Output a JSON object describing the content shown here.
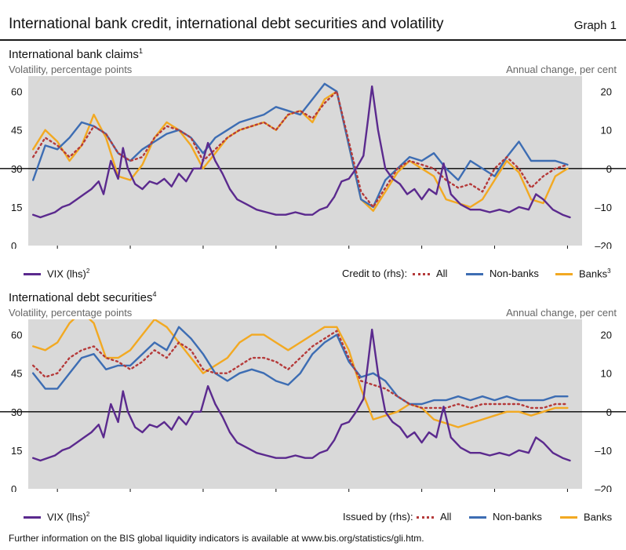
{
  "header": {
    "title": "International bank credit, international debt securities and volatility",
    "graph": "Graph 1"
  },
  "footnote": "Further information on the BIS global liquidity indicators is available at www.bis.org/statistics/gli.htm.",
  "colors": {
    "vix": "#5b2a8e",
    "all": "#b53a3a",
    "nonbanks": "#3d6db3",
    "banks": "#f2a922",
    "plot_bg": "#d9d9d9"
  },
  "chart_data": [
    {
      "type": "line",
      "title": "International bank claims",
      "title_note": "1",
      "ylabel_left": "Volatility, percentage points",
      "ylabel_right": "Annual change, per cent",
      "ylim_left": [
        0,
        66
      ],
      "ylim_right": [
        -20,
        24
      ],
      "left_ticks": [
        "0",
        "15",
        "30",
        "45",
        "60"
      ],
      "right_ticks": [
        "–20",
        "–10",
        "0",
        "10",
        "20"
      ],
      "x_ticks": [
        "1996",
        "1999",
        "2002",
        "2005",
        "2008",
        "2011",
        "2014",
        "2017"
      ],
      "xlim": [
        1994.8,
        2017.6
      ],
      "zero_line": true,
      "legend": {
        "vix_label": "VIX (lhs)",
        "vix_note": "2",
        "group_label": "Credit to (rhs):",
        "all_label": "All",
        "nonbanks_label": "Non-banks",
        "banks_label": "Banks",
        "banks_note": "3"
      },
      "series": [
        {
          "name": "VIX (lhs)",
          "axis": "left",
          "style": "vix",
          "x": [
            1995.0,
            1995.3,
            1995.6,
            1995.9,
            1996.2,
            1996.5,
            1996.8,
            1997.1,
            1997.4,
            1997.7,
            1997.9,
            1998.2,
            1998.5,
            1998.7,
            1998.9,
            1999.2,
            1999.5,
            1999.8,
            2000.1,
            2000.4,
            2000.7,
            2001.0,
            2001.3,
            2001.6,
            2001.9,
            2002.2,
            2002.5,
            2002.8,
            2003.1,
            2003.4,
            2003.8,
            2004.2,
            2004.6,
            2005.0,
            2005.4,
            2005.8,
            2006.2,
            2006.5,
            2006.8,
            2007.1,
            2007.4,
            2007.7,
            2008.0,
            2008.3,
            2008.6,
            2008.8,
            2008.95,
            2009.2,
            2009.5,
            2009.8,
            2010.1,
            2010.4,
            2010.7,
            2011.0,
            2011.3,
            2011.6,
            2011.9,
            2012.2,
            2012.6,
            2013.0,
            2013.4,
            2013.8,
            2014.2,
            2014.6,
            2015.0,
            2015.4,
            2015.7,
            2016.0,
            2016.4,
            2016.8,
            2017.1
          ],
          "y": [
            12,
            11,
            12,
            13,
            15,
            16,
            18,
            20,
            22,
            25,
            20,
            33,
            26,
            38,
            30,
            24,
            22,
            25,
            24,
            26,
            23,
            28,
            25,
            30,
            30,
            40,
            33,
            28,
            22,
            18,
            16,
            14,
            13,
            12,
            12,
            13,
            12,
            12,
            14,
            15,
            19,
            25,
            26,
            30,
            35,
            50,
            62,
            45,
            30,
            26,
            24,
            20,
            22,
            18,
            22,
            20,
            32,
            20,
            16,
            14,
            14,
            13,
            14,
            13,
            15,
            14,
            20,
            18,
            14,
            12,
            11
          ]
        },
        {
          "name": "All",
          "axis": "right",
          "style": "all",
          "x": [
            1995.0,
            1995.5,
            1996.0,
            1996.5,
            1997.0,
            1997.5,
            1998.0,
            1998.5,
            1999.0,
            1999.5,
            2000.0,
            2000.5,
            2001.0,
            2001.5,
            2002.0,
            2002.5,
            2003.0,
            2003.5,
            2004.0,
            2004.5,
            2005.0,
            2005.5,
            2006.0,
            2006.5,
            2007.0,
            2007.5,
            2008.0,
            2008.5,
            2009.0,
            2009.5,
            2010.0,
            2010.5,
            2011.0,
            2011.5,
            2012.0,
            2012.5,
            2013.0,
            2013.5,
            2014.0,
            2014.5,
            2015.0,
            2015.5,
            2016.0,
            2016.5,
            2017.0
          ],
          "y": [
            3,
            8,
            6,
            3,
            6,
            11,
            9,
            4,
            2,
            3,
            8,
            11,
            10,
            8,
            2,
            5,
            8,
            10,
            11,
            12,
            10,
            14,
            15,
            13,
            17,
            20,
            7,
            -6,
            -10,
            -5,
            0,
            2,
            1,
            0,
            -3,
            -5,
            -4,
            -6,
            0,
            3,
            0,
            -5,
            -2,
            0,
            1
          ]
        },
        {
          "name": "Non-banks",
          "axis": "right",
          "style": "nonbanks",
          "x": [
            1995.0,
            1995.5,
            1996.0,
            1996.5,
            1997.0,
            1997.5,
            1998.0,
            1998.5,
            1999.0,
            1999.5,
            2000.0,
            2000.5,
            2001.0,
            2001.5,
            2002.0,
            2002.5,
            2003.0,
            2003.5,
            2004.0,
            2004.5,
            2005.0,
            2005.5,
            2006.0,
            2006.5,
            2007.0,
            2007.5,
            2008.0,
            2008.5,
            2009.0,
            2009.5,
            2010.0,
            2010.5,
            2011.0,
            2011.5,
            2012.0,
            2012.5,
            2013.0,
            2013.5,
            2014.0,
            2014.5,
            2015.0,
            2015.5,
            2016.0,
            2016.5,
            2017.0
          ],
          "y": [
            -3,
            6,
            5,
            8,
            12,
            11,
            9,
            4,
            2,
            5,
            7,
            9,
            10,
            8,
            4,
            8,
            10,
            12,
            13,
            14,
            16,
            15,
            14,
            18,
            22,
            20,
            6,
            -8,
            -10,
            -3,
            0,
            3,
            2,
            4,
            0,
            -3,
            2,
            0,
            -2,
            3,
            7,
            2,
            2,
            2,
            1
          ]
        },
        {
          "name": "Banks",
          "axis": "right",
          "style": "banks",
          "x": [
            1995.0,
            1995.5,
            1996.0,
            1996.5,
            1997.0,
            1997.5,
            1998.0,
            1998.5,
            1999.0,
            1999.5,
            2000.0,
            2000.5,
            2001.0,
            2001.5,
            2002.0,
            2002.5,
            2003.0,
            2003.5,
            2004.0,
            2004.5,
            2005.0,
            2005.5,
            2006.0,
            2006.5,
            2007.0,
            2007.5,
            2008.0,
            2008.5,
            2009.0,
            2009.5,
            2010.0,
            2010.5,
            2011.0,
            2011.5,
            2012.0,
            2012.5,
            2013.0,
            2013.5,
            2014.0,
            2014.5,
            2015.0,
            2015.5,
            2016.0,
            2016.5,
            2017.0
          ],
          "y": [
            5,
            10,
            7,
            2,
            6,
            14,
            8,
            -2,
            -3,
            1,
            8,
            12,
            10,
            6,
            0,
            4,
            8,
            10,
            11,
            12,
            10,
            14,
            15,
            12,
            18,
            20,
            6,
            -8,
            -11,
            -6,
            -1,
            2,
            0,
            -2,
            -8,
            -9,
            -10,
            -8,
            -3,
            2,
            -1,
            -8,
            -9,
            -2,
            0
          ]
        }
      ]
    },
    {
      "type": "line",
      "title": "International debt securities",
      "title_note": "4",
      "ylabel_left": "Volatility, percentage points",
      "ylabel_right": "Annual change, per cent",
      "ylim_left": [
        0,
        66
      ],
      "ylim_right": [
        -20,
        24
      ],
      "left_ticks": [
        "0",
        "15",
        "30",
        "45",
        "60"
      ],
      "right_ticks": [
        "–20",
        "–10",
        "0",
        "10",
        "20"
      ],
      "x_ticks": [
        "1996",
        "1999",
        "2002",
        "2005",
        "2008",
        "2011",
        "2014",
        "2017"
      ],
      "xlim": [
        1994.8,
        2017.6
      ],
      "zero_line": true,
      "legend": {
        "vix_label": "VIX (lhs)",
        "vix_note": "2",
        "group_label": "Issued by (rhs):",
        "all_label": "All",
        "nonbanks_label": "Non-banks",
        "banks_label": "Banks",
        "banks_note": ""
      },
      "series": [
        {
          "name": "VIX (lhs)",
          "axis": "left",
          "style": "vix",
          "x": [
            1995.0,
            1995.3,
            1995.6,
            1995.9,
            1996.2,
            1996.5,
            1996.8,
            1997.1,
            1997.4,
            1997.7,
            1997.9,
            1998.2,
            1998.5,
            1998.7,
            1998.9,
            1999.2,
            1999.5,
            1999.8,
            2000.1,
            2000.4,
            2000.7,
            2001.0,
            2001.3,
            2001.6,
            2001.9,
            2002.2,
            2002.5,
            2002.8,
            2003.1,
            2003.4,
            2003.8,
            2004.2,
            2004.6,
            2005.0,
            2005.4,
            2005.8,
            2006.2,
            2006.5,
            2006.8,
            2007.1,
            2007.4,
            2007.7,
            2008.0,
            2008.3,
            2008.6,
            2008.8,
            2008.95,
            2009.2,
            2009.5,
            2009.8,
            2010.1,
            2010.4,
            2010.7,
            2011.0,
            2011.3,
            2011.6,
            2011.9,
            2012.2,
            2012.6,
            2013.0,
            2013.4,
            2013.8,
            2014.2,
            2014.6,
            2015.0,
            2015.4,
            2015.7,
            2016.0,
            2016.4,
            2016.8,
            2017.1
          ],
          "y": [
            12,
            11,
            12,
            13,
            15,
            16,
            18,
            20,
            22,
            25,
            20,
            33,
            26,
            38,
            30,
            24,
            22,
            25,
            24,
            26,
            23,
            28,
            25,
            30,
            30,
            40,
            33,
            28,
            22,
            18,
            16,
            14,
            13,
            12,
            12,
            13,
            12,
            12,
            14,
            15,
            19,
            25,
            26,
            30,
            35,
            50,
            62,
            45,
            30,
            26,
            24,
            20,
            22,
            18,
            22,
            20,
            32,
            20,
            16,
            14,
            14,
            13,
            14,
            13,
            15,
            14,
            20,
            18,
            14,
            12,
            11
          ]
        },
        {
          "name": "All",
          "axis": "right",
          "style": "all",
          "x": [
            1995.0,
            1995.5,
            1996.0,
            1996.5,
            1997.0,
            1997.5,
            1998.0,
            1998.5,
            1999.0,
            1999.5,
            2000.0,
            2000.5,
            2001.0,
            2001.5,
            2002.0,
            2002.5,
            2003.0,
            2003.5,
            2004.0,
            2004.5,
            2005.0,
            2005.5,
            2006.0,
            2006.5,
            2007.0,
            2007.5,
            2008.0,
            2008.5,
            2009.0,
            2009.5,
            2010.0,
            2010.5,
            2011.0,
            2011.5,
            2012.0,
            2012.5,
            2013.0,
            2013.5,
            2014.0,
            2014.5,
            2015.0,
            2015.5,
            2016.0,
            2016.5,
            2017.0
          ],
          "y": [
            12,
            9,
            10,
            14,
            16,
            17,
            14,
            13,
            11,
            13,
            16,
            14,
            18,
            16,
            11,
            10,
            10,
            12,
            14,
            14,
            13,
            11,
            14,
            17,
            19,
            21,
            14,
            8,
            7,
            6,
            4,
            2,
            1,
            1,
            1,
            2,
            1,
            2,
            2,
            2,
            2,
            1,
            1,
            2,
            2
          ]
        },
        {
          "name": "Non-banks",
          "axis": "right",
          "style": "nonbanks",
          "x": [
            1995.0,
            1995.5,
            1996.0,
            1996.5,
            1997.0,
            1997.5,
            1998.0,
            1998.5,
            1999.0,
            1999.5,
            2000.0,
            2000.5,
            2001.0,
            2001.5,
            2002.0,
            2002.5,
            2003.0,
            2003.5,
            2004.0,
            2004.5,
            2005.0,
            2005.5,
            2006.0,
            2006.5,
            2007.0,
            2007.5,
            2008.0,
            2008.5,
            2009.0,
            2009.5,
            2010.0,
            2010.5,
            2011.0,
            2011.5,
            2012.0,
            2012.5,
            2013.0,
            2013.5,
            2014.0,
            2014.5,
            2015.0,
            2015.5,
            2016.0,
            2016.5,
            2017.0
          ],
          "y": [
            10,
            6,
            6,
            10,
            14,
            15,
            11,
            12,
            12,
            15,
            18,
            16,
            22,
            19,
            15,
            10,
            8,
            10,
            11,
            10,
            8,
            7,
            10,
            15,
            18,
            20,
            13,
            9,
            10,
            8,
            4,
            2,
            2,
            3,
            3,
            4,
            3,
            4,
            3,
            4,
            3,
            3,
            3,
            4,
            4
          ]
        },
        {
          "name": "Banks",
          "axis": "right",
          "style": "banks",
          "x": [
            1995.0,
            1995.5,
            1996.0,
            1996.5,
            1997.0,
            1997.5,
            1998.0,
            1998.5,
            1999.0,
            1999.5,
            2000.0,
            2000.5,
            2001.0,
            2001.5,
            2002.0,
            2002.5,
            2003.0,
            2003.5,
            2004.0,
            2004.5,
            2005.0,
            2005.5,
            2006.0,
            2006.5,
            2007.0,
            2007.5,
            2008.0,
            2008.5,
            2009.0,
            2009.5,
            2010.0,
            2010.5,
            2011.0,
            2011.5,
            2012.0,
            2012.5,
            2013.0,
            2013.5,
            2014.0,
            2014.5,
            2015.0,
            2015.5,
            2016.0,
            2016.5,
            2017.0
          ],
          "y": [
            17,
            16,
            18,
            23,
            26,
            23,
            14,
            14,
            16,
            20,
            24,
            22,
            18,
            14,
            10,
            12,
            14,
            18,
            20,
            20,
            18,
            16,
            18,
            20,
            22,
            22,
            16,
            6,
            -2,
            -1,
            0,
            2,
            1,
            -2,
            -3,
            -4,
            -3,
            -2,
            -1,
            0,
            0,
            -1,
            0,
            1,
            1
          ]
        }
      ]
    }
  ]
}
